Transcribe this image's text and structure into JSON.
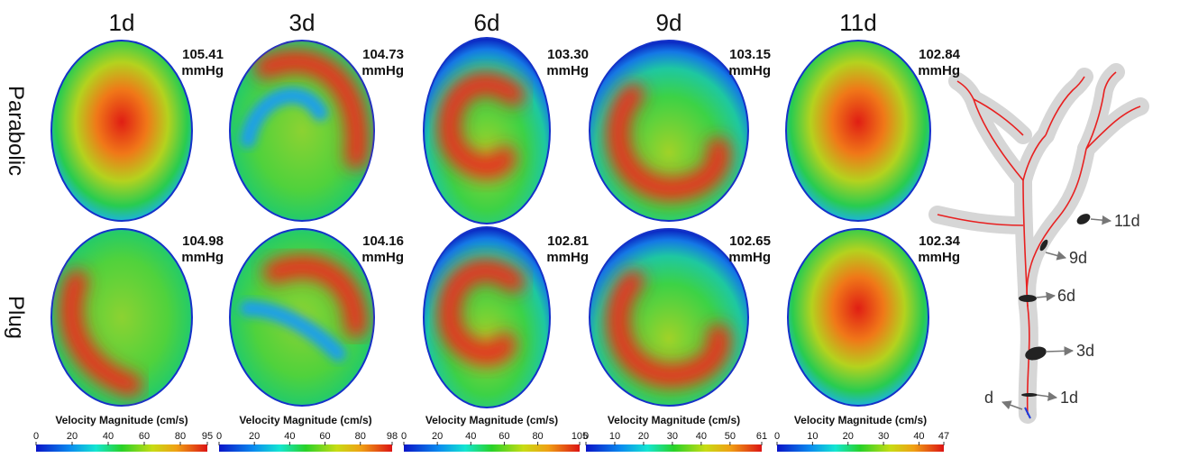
{
  "columns": [
    "1d",
    "3d",
    "6d",
    "9d",
    "11d"
  ],
  "rows": [
    "Parabolic",
    "Plug"
  ],
  "pressures": [
    [
      "105.41",
      "104.73",
      "103.30",
      "103.15",
      "102.84"
    ],
    [
      "104.98",
      "104.16",
      "102.81",
      "102.65",
      "102.34"
    ]
  ],
  "pressure_unit": "mmHg",
  "colorbars": [
    {
      "title": "Velocity Magnitude (cm/s)",
      "ticks": [
        0,
        20,
        40,
        60,
        80,
        95
      ]
    },
    {
      "title": "Velocity Magnitude (cm/s)",
      "ticks": [
        0,
        20,
        40,
        60,
        80,
        98
      ]
    },
    {
      "title": "Velocity Magnitude (cm/s)",
      "ticks": [
        0,
        20,
        40,
        60,
        80,
        105
      ]
    },
    {
      "title": "Velocity Magnitude (cm/s)",
      "ticks": [
        0,
        10,
        20,
        30,
        40,
        50,
        61
      ]
    },
    {
      "title": "Velocity Magnitude (cm/s)",
      "ticks": [
        0,
        10,
        20,
        30,
        40,
        47
      ]
    }
  ],
  "vessel_labels": [
    "11d",
    "9d",
    "6d",
    "3d",
    "1d",
    "d"
  ]
}
